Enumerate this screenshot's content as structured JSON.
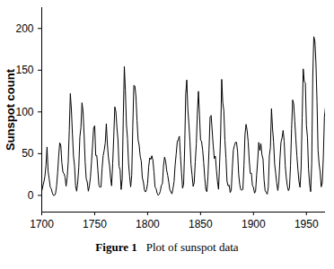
{
  "chart_data": {
    "type": "line",
    "figure_label": "Figure 1",
    "caption": "Plot of sunspot data",
    "y_label": "Sunspot count",
    "color": "#000000",
    "x": [
      1700,
      1701,
      1702,
      1703,
      1704,
      1705,
      1706,
      1707,
      1708,
      1709,
      1710,
      1711,
      1712,
      1713,
      1714,
      1715,
      1716,
      1717,
      1718,
      1719,
      1720,
      1721,
      1722,
      1723,
      1724,
      1725,
      1726,
      1727,
      1728,
      1729,
      1730,
      1731,
      1732,
      1733,
      1734,
      1735,
      1736,
      1737,
      1738,
      1739,
      1740,
      1741,
      1742,
      1743,
      1744,
      1745,
      1746,
      1747,
      1748,
      1749,
      1750,
      1751,
      1752,
      1753,
      1754,
      1755,
      1756,
      1757,
      1758,
      1759,
      1760,
      1761,
      1762,
      1763,
      1764,
      1765,
      1766,
      1767,
      1768,
      1769,
      1770,
      1771,
      1772,
      1773,
      1774,
      1775,
      1776,
      1777,
      1778,
      1779,
      1780,
      1781,
      1782,
      1783,
      1784,
      1785,
      1786,
      1787,
      1788,
      1789,
      1790,
      1791,
      1792,
      1793,
      1794,
      1795,
      1796,
      1797,
      1798,
      1799,
      1800,
      1801,
      1802,
      1803,
      1804,
      1805,
      1806,
      1807,
      1808,
      1809,
      1810,
      1811,
      1812,
      1813,
      1814,
      1815,
      1816,
      1817,
      1818,
      1819,
      1820,
      1821,
      1822,
      1823,
      1824,
      1825,
      1826,
      1827,
      1828,
      1829,
      1830,
      1831,
      1832,
      1833,
      1834,
      1835,
      1836,
      1837,
      1838,
      1839,
      1840,
      1841,
      1842,
      1843,
      1844,
      1845,
      1846,
      1847,
      1848,
      1849,
      1850,
      1851,
      1852,
      1853,
      1854,
      1855,
      1856,
      1857,
      1858,
      1859,
      1860,
      1861,
      1862,
      1863,
      1864,
      1865,
      1866,
      1867,
      1868,
      1869,
      1870,
      1871,
      1872,
      1873,
      1874,
      1875,
      1876,
      1877,
      1878,
      1879,
      1880,
      1881,
      1882,
      1883,
      1884,
      1885,
      1886,
      1887,
      1888,
      1889,
      1890,
      1891,
      1892,
      1893,
      1894,
      1895,
      1896,
      1897,
      1898,
      1899,
      1900,
      1901,
      1902,
      1903,
      1904,
      1905,
      1906,
      1907,
      1908,
      1909,
      1910,
      1911,
      1912,
      1913,
      1914,
      1915,
      1916,
      1917,
      1918,
      1919,
      1920,
      1921,
      1922,
      1923,
      1924,
      1925,
      1926,
      1927,
      1928,
      1929,
      1930,
      1931,
      1932,
      1933,
      1934,
      1935,
      1936,
      1937,
      1938,
      1939,
      1940,
      1941,
      1942,
      1943,
      1944,
      1945,
      1946,
      1947,
      1948,
      1949,
      1950,
      1951,
      1952,
      1953,
      1954,
      1955,
      1956,
      1957,
      1958,
      1959,
      1960,
      1961,
      1962,
      1963,
      1964,
      1965,
      1966,
      1967,
      1968
    ],
    "values": [
      5,
      11,
      16,
      23,
      36,
      58,
      29,
      20,
      10,
      8,
      3,
      0,
      0,
      2,
      11,
      27,
      47,
      63,
      60,
      39,
      28,
      26,
      22,
      11,
      21,
      40,
      78,
      122,
      103,
      73,
      47,
      35,
      11,
      5,
      16,
      34,
      70,
      81,
      111,
      101,
      73,
      40,
      20,
      16,
      5,
      11,
      22,
      40,
      60,
      80.9,
      83.4,
      47.7,
      47.8,
      30.7,
      12.2,
      9.6,
      10.2,
      32.4,
      47.6,
      54.0,
      62.9,
      85.9,
      61.2,
      45.1,
      36.4,
      20.9,
      11.4,
      37.8,
      69.8,
      106.1,
      100.8,
      81.6,
      66.5,
      34.8,
      30.6,
      7.0,
      19.8,
      92.5,
      154.4,
      125.9,
      84.8,
      68.1,
      38.5,
      22.8,
      10.2,
      24.1,
      82.9,
      132.0,
      130.9,
      118.1,
      89.9,
      66.6,
      60.0,
      46.9,
      41.0,
      21.3,
      16.0,
      6.4,
      4.1,
      6.8,
      14.5,
      34.0,
      45.0,
      43.1,
      47.5,
      42.2,
      28.1,
      10.1,
      8.1,
      2.5,
      0.0,
      1.4,
      5.0,
      12.2,
      13.9,
      35.4,
      45.8,
      41.1,
      30.1,
      23.9,
      15.6,
      6.6,
      4.0,
      1.8,
      8.5,
      16.6,
      36.3,
      49.6,
      64.2,
      67.0,
      70.9,
      47.8,
      27.5,
      8.5,
      13.2,
      56.9,
      121.5,
      138.3,
      103.2,
      85.7,
      64.6,
      36.7,
      24.2,
      10.7,
      15.0,
      40.1,
      61.5,
      98.5,
      124.7,
      96.3,
      66.6,
      64.5,
      54.1,
      39.0,
      20.6,
      6.7,
      4.3,
      22.7,
      54.8,
      93.8,
      95.8,
      77.2,
      59.1,
      44.0,
      47.0,
      30.5,
      16.3,
      7.3,
      37.6,
      74.0,
      139.0,
      111.2,
      101.6,
      66.2,
      44.7,
      17.0,
      11.3,
      12.4,
      3.4,
      6.0,
      32.3,
      54.3,
      59.7,
      63.7,
      63.5,
      52.2,
      25.4,
      13.1,
      6.8,
      6.3,
      7.1,
      35.6,
      73.0,
      85.1,
      78.0,
      64.0,
      41.8,
      26.2,
      26.7,
      12.1,
      9.5,
      2.7,
      5.0,
      24.4,
      42.0,
      63.5,
      53.8,
      62.0,
      48.5,
      43.9,
      18.6,
      5.7,
      3.6,
      1.4,
      9.6,
      47.4,
      57.1,
      103.9,
      80.6,
      63.6,
      37.6,
      26.1,
      14.2,
      5.8,
      16.7,
      44.3,
      63.9,
      69.0,
      77.8,
      64.9,
      35.7,
      21.2,
      11.1,
      5.7,
      8.7,
      36.1,
      79.7,
      114.4,
      109.6,
      88.8,
      67.8,
      47.5,
      30.6,
      16.3,
      9.6,
      33.2,
      92.6,
      151.6,
      136.3,
      134.7,
      83.9,
      69.4,
      31.5,
      13.9,
      4.4,
      38.0,
      141.7,
      190.2,
      184.8,
      159.0,
      112.3,
      53.9,
      37.5,
      27.9,
      10.2,
      15.1,
      47.0,
      93.8,
      105.9
    ],
    "xlim": [
      1700,
      1968
    ],
    "xticks": [
      1700,
      1750,
      1800,
      1850,
      1900,
      1950
    ],
    "ylim": [
      -20,
      225
    ],
    "yticks": [
      0,
      50,
      100,
      150,
      200
    ],
    "grid": false
  }
}
